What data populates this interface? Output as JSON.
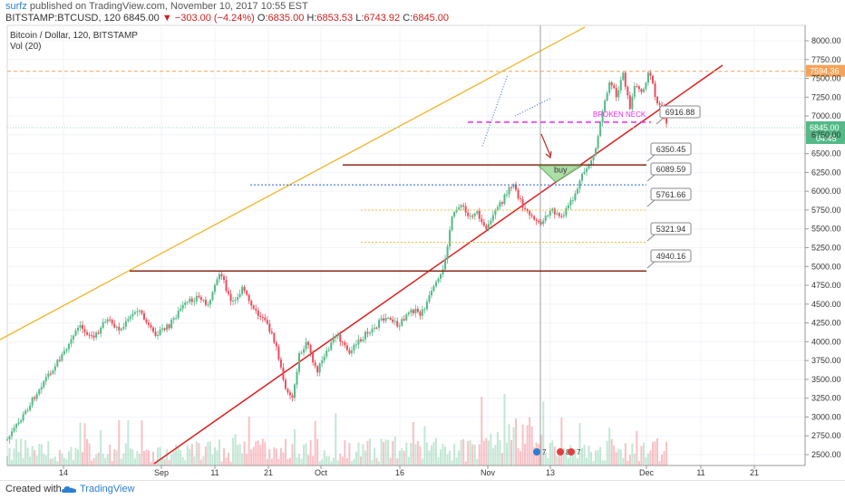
{
  "header": {
    "user": "surfz",
    "published_text": "published on TradingView.com, November 10, 2017 10:55 EST",
    "symbol": "BITSTAMP:BTCUSD, 120",
    "last": "6845.00",
    "change": "−303.00 (−4.24%)",
    "o_label": "O:",
    "o": "6835.00",
    "h_label": "H:",
    "h": "6853.53",
    "l_label": "L:",
    "l": "6743.92",
    "c_label": "C:",
    "c": "6845.00"
  },
  "legend": {
    "title": "Bitcoin / Dollar, 120, BITSTAMP",
    "vol": "Vol (20)"
  },
  "footer": {
    "created": "Created with",
    "brand": "TradingView"
  },
  "colors": {
    "up": "#53b987",
    "down": "#eb4d5c",
    "trend_yellow": "#f0b429",
    "trend_red": "#e01e1e",
    "level_brown": "#8b2a1a",
    "neck_magenta": "#e62ee6",
    "accent_blue": "#2a7fd4"
  },
  "chart_data": {
    "type": "candlestick",
    "title": "Bitcoin / Dollar, 120, BITSTAMP",
    "x_tick_labels": [
      "14",
      "Sep",
      "11",
      "21",
      "Oct",
      "16",
      "Nov",
      "13",
      "Dec",
      "11",
      "21"
    ],
    "y_tick_labels": [
      "8000.00",
      "7750.00",
      "7500.00",
      "7250.00",
      "7000.00",
      "6750.00",
      "6500.00",
      "6250.00",
      "6000.00",
      "5750.00",
      "5500.00",
      "5250.00",
      "5000.00",
      "4750.00",
      "4500.00",
      "4250.00",
      "4000.00",
      "3750.00",
      "3500.00",
      "3250.00",
      "3000.00",
      "2750.00",
      "2500.00"
    ],
    "y_range": [
      2400,
      8150
    ],
    "price_path": [
      [
        2017.61,
        2700
      ],
      [
        2017.617,
        3000
      ],
      [
        2017.626,
        3450
      ],
      [
        2017.636,
        3850
      ],
      [
        2017.643,
        4200
      ],
      [
        2017.65,
        4050
      ],
      [
        2017.655,
        4300
      ],
      [
        2017.662,
        4150
      ],
      [
        2017.67,
        4450
      ],
      [
        2017.677,
        4100
      ],
      [
        2017.684,
        4200
      ],
      [
        2017.69,
        4450
      ],
      [
        2017.697,
        4600
      ],
      [
        2017.703,
        4500
      ],
      [
        2017.708,
        4950
      ],
      [
        2017.713,
        4500
      ],
      [
        2017.718,
        4700
      ],
      [
        2017.724,
        4400
      ],
      [
        2017.73,
        4200
      ],
      [
        2017.734,
        3900
      ],
      [
        2017.737,
        3450
      ],
      [
        2017.741,
        3250
      ],
      [
        2017.744,
        3800
      ],
      [
        2017.748,
        4000
      ],
      [
        2017.752,
        3600
      ],
      [
        2017.756,
        3800
      ],
      [
        2017.761,
        4100
      ],
      [
        2017.767,
        3850
      ],
      [
        2017.773,
        4050
      ],
      [
        2017.779,
        4200
      ],
      [
        2017.785,
        4350
      ],
      [
        2017.79,
        4200
      ],
      [
        2017.795,
        4450
      ],
      [
        2017.8,
        4350
      ],
      [
        2017.805,
        4650
      ],
      [
        2017.81,
        4900
      ],
      [
        2017.814,
        5600
      ],
      [
        2017.818,
        5850
      ],
      [
        2017.822,
        5650
      ],
      [
        2017.826,
        5750
      ],
      [
        2017.83,
        5450
      ],
      [
        2017.834,
        5700
      ],
      [
        2017.838,
        5900
      ],
      [
        2017.842,
        6100
      ],
      [
        2017.846,
        5850
      ],
      [
        2017.85,
        5650
      ],
      [
        2017.855,
        5550
      ],
      [
        2017.86,
        5750
      ],
      [
        2017.865,
        5650
      ],
      [
        2017.87,
        5900
      ],
      [
        2017.875,
        6250
      ],
      [
        2017.88,
        6500
      ],
      [
        2017.884,
        7150
      ],
      [
        2017.887,
        7500
      ],
      [
        2017.89,
        7250
      ],
      [
        2017.893,
        7600
      ],
      [
        2017.896,
        7100
      ],
      [
        2017.899,
        7450
      ],
      [
        2017.902,
        7300
      ],
      [
        2017.905,
        7650
      ],
      [
        2017.908,
        7200
      ],
      [
        2017.911,
        7100
      ],
      [
        2017.914,
        6850
      ]
    ],
    "candle_count": 290,
    "volume_count": 290,
    "levels": [
      {
        "label": "7594.36",
        "value": 7594.36
      },
      {
        "label": "6916.88",
        "value": 6916.88
      },
      {
        "label": "6845.00",
        "value": 6845.0
      },
      {
        "label": "6350.45",
        "value": 6350.45
      },
      {
        "label": "6089.59",
        "value": 6089.59
      },
      {
        "label": "5761.66",
        "value": 5761.66
      },
      {
        "label": "5321.94",
        "value": 5321.94
      },
      {
        "label": "4940.16",
        "value": 4940.16
      }
    ],
    "time_badge": "04:45",
    "annotations": {
      "neck": "BROKEN NECK",
      "buy": "buy"
    },
    "event_marks": [
      "7",
      "8",
      "7"
    ]
  }
}
